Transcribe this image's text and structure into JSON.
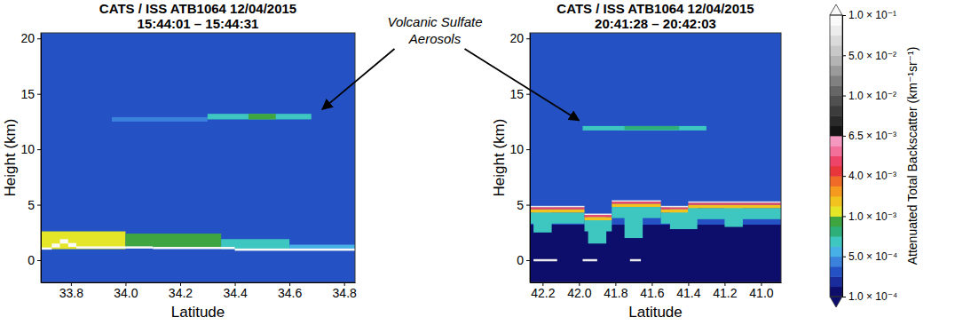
{
  "chart_data": [
    {
      "type": "heatmap",
      "title": "CATS / ISS ATB1064 12/04/2015",
      "subtitle": "15:44:01 – 15:44:31",
      "x_label": "Latitude",
      "y_label": "Height (km)",
      "xlim": [
        33.69,
        34.84
      ],
      "xticks": [
        33.8,
        {
          "value": 34,
          "label": "34.0"
        },
        34.2,
        34.4,
        34.6,
        34.8
      ],
      "ylim": [
        -2,
        20.5
      ],
      "yticks": [
        0,
        5,
        10,
        15,
        20
      ],
      "cells": [
        {
          "x": [
            33.69,
            34.84
          ],
          "y": [
            -2,
            20.5
          ],
          "value": 0.00025
        },
        {
          "x": [
            33.69,
            34.0
          ],
          "y": [
            1.0,
            2.6
          ],
          "value": 0.0011
        },
        {
          "x": [
            34.0,
            34.35
          ],
          "y": [
            1.1,
            2.4
          ],
          "value": 0.0009
        },
        {
          "x": [
            34.35,
            34.6
          ],
          "y": [
            1.0,
            1.9
          ],
          "value": 0.0006
        },
        {
          "x": [
            34.6,
            34.84
          ],
          "y": [
            0.9,
            1.4
          ],
          "value": 0.0005
        },
        {
          "x": [
            33.69,
            33.73
          ],
          "y": [
            0.95,
            1.15
          ],
          "value": 0.1
        },
        {
          "x": [
            33.73,
            33.76
          ],
          "y": [
            1.15,
            1.5
          ],
          "value": 0.1
        },
        {
          "x": [
            33.76,
            33.79
          ],
          "y": [
            1.5,
            1.9
          ],
          "value": 0.1
        },
        {
          "x": [
            33.79,
            33.82
          ],
          "y": [
            1.2,
            1.55
          ],
          "value": 0.1
        },
        {
          "x": [
            33.82,
            34.1
          ],
          "y": [
            1.05,
            1.25
          ],
          "value": 0.1
        },
        {
          "x": [
            34.1,
            34.4
          ],
          "y": [
            1.0,
            1.2
          ],
          "value": 0.1
        },
        {
          "x": [
            34.4,
            34.84
          ],
          "y": [
            0.85,
            1.05
          ],
          "value": 0.1
        },
        {
          "x": [
            33.95,
            34.3
          ],
          "y": [
            12.5,
            12.9
          ],
          "value": 0.00045
        },
        {
          "x": [
            34.3,
            34.68
          ],
          "y": [
            12.7,
            13.2
          ],
          "value": 0.0007
        },
        {
          "x": [
            34.45,
            34.55
          ],
          "y": [
            12.7,
            13.2
          ],
          "value": 0.0009
        }
      ],
      "annotation_point": {
        "x": 34.72,
        "y": 13.6
      }
    },
    {
      "type": "heatmap",
      "title": "CATS / ISS ATB1064 12/04/2015",
      "subtitle": "20:41:28 – 20:42:03",
      "x_label": "Latitude",
      "y_label": "Height (km)",
      "xlim": [
        42.27,
        40.89
      ],
      "xticks": [
        42.2,
        {
          "value": 42,
          "label": "42.0"
        },
        41.8,
        41.6,
        41.4,
        41.2,
        {
          "value": 41,
          "label": "41.0"
        }
      ],
      "ylim": [
        -2,
        20.5
      ],
      "yticks": [
        0,
        5,
        10,
        15,
        20
      ],
      "cells": [
        {
          "x": [
            42.27,
            40.89
          ],
          "y": [
            -2,
            20.5
          ],
          "value": 0.00025
        },
        {
          "x": [
            42.27,
            40.89
          ],
          "y": [
            -2,
            3.2
          ],
          "value": 0.00012
        },
        {
          "x": [
            42.25,
            42.15
          ],
          "y": [
            2.5,
            4.3
          ],
          "value": 0.0006
        },
        {
          "x": [
            41.95,
            41.85
          ],
          "y": [
            1.5,
            4.0
          ],
          "value": 0.0007
        },
        {
          "x": [
            41.75,
            41.65
          ],
          "y": [
            2.0,
            4.6
          ],
          "value": 0.0006
        },
        {
          "x": [
            41.5,
            41.35
          ],
          "y": [
            2.8,
            4.8
          ],
          "value": 0.0006
        },
        {
          "x": [
            41.2,
            41.1
          ],
          "y": [
            3.0,
            4.8
          ],
          "value": 0.0006
        },
        {
          "x": [
            42.27,
            41.97
          ],
          "y": [
            3.3,
            4.3
          ],
          "value": 0.0007
        },
        {
          "x": [
            42.27,
            41.97
          ],
          "y": [
            4.3,
            4.6
          ],
          "value": 0.0015
        },
        {
          "x": [
            42.27,
            41.97
          ],
          "y": [
            4.6,
            4.78
          ],
          "value": 0.005
        },
        {
          "x": [
            42.27,
            41.97
          ],
          "y": [
            4.78,
            4.9
          ],
          "value": 0.08
        },
        {
          "x": [
            41.97,
            41.82
          ],
          "y": [
            2.6,
            3.6
          ],
          "value": 0.0007
        },
        {
          "x": [
            41.97,
            41.82
          ],
          "y": [
            3.6,
            3.9
          ],
          "value": 0.0015
        },
        {
          "x": [
            41.97,
            41.82
          ],
          "y": [
            3.9,
            4.08
          ],
          "value": 0.005
        },
        {
          "x": [
            41.97,
            41.82
          ],
          "y": [
            4.08,
            4.2
          ],
          "value": 0.08
        },
        {
          "x": [
            41.82,
            41.55
          ],
          "y": [
            3.8,
            4.8
          ],
          "value": 0.0007
        },
        {
          "x": [
            41.82,
            41.55
          ],
          "y": [
            4.8,
            5.1
          ],
          "value": 0.0015
        },
        {
          "x": [
            41.82,
            41.55
          ],
          "y": [
            5.1,
            5.28
          ],
          "value": 0.005
        },
        {
          "x": [
            41.82,
            41.55
          ],
          "y": [
            5.28,
            5.4
          ],
          "value": 0.08
        },
        {
          "x": [
            41.55,
            41.4
          ],
          "y": [
            3.3,
            4.3
          ],
          "value": 0.0007
        },
        {
          "x": [
            41.55,
            41.4
          ],
          "y": [
            4.3,
            4.6
          ],
          "value": 0.0015
        },
        {
          "x": [
            41.55,
            41.4
          ],
          "y": [
            4.6,
            4.78
          ],
          "value": 0.005
        },
        {
          "x": [
            41.55,
            41.4
          ],
          "y": [
            4.78,
            4.9
          ],
          "value": 0.08
        },
        {
          "x": [
            41.4,
            40.89
          ],
          "y": [
            3.7,
            4.7
          ],
          "value": 0.0007
        },
        {
          "x": [
            41.4,
            40.89
          ],
          "y": [
            4.7,
            5.0
          ],
          "value": 0.0015
        },
        {
          "x": [
            41.4,
            40.89
          ],
          "y": [
            5.0,
            5.18
          ],
          "value": 0.005
        },
        {
          "x": [
            41.4,
            40.89
          ],
          "y": [
            5.18,
            5.3
          ],
          "value": 0.08
        },
        {
          "x": [
            42.25,
            42.12
          ],
          "y": [
            -0.1,
            0.1
          ],
          "value": 0.08
        },
        {
          "x": [
            41.98,
            41.9
          ],
          "y": [
            -0.1,
            0.1
          ],
          "value": 0.08
        },
        {
          "x": [
            41.72,
            41.66
          ],
          "y": [
            -0.1,
            0.1
          ],
          "value": 0.08
        },
        {
          "x": [
            41.98,
            41.3
          ],
          "y": [
            11.7,
            12.1
          ],
          "value": 0.00065
        },
        {
          "x": [
            41.75,
            41.45
          ],
          "y": [
            11.75,
            12.1
          ],
          "value": 0.0008
        }
      ],
      "annotation_point": {
        "x": 42.0,
        "y": 12.6
      }
    }
  ],
  "annotation": {
    "text": [
      "Volcanic Sulfate",
      "Aerosols"
    ]
  },
  "colorbar": {
    "title": "Attenuated Total Backscatter (km⁻¹sr⁻¹)",
    "range": [
      0.0001,
      0.1
    ],
    "ticks": [
      {
        "value": 0.0001,
        "label": "1.0 × 10⁻⁴"
      },
      {
        "value": 0.0005,
        "label": "5.0 × 10⁻⁴"
      },
      {
        "value": 0.001,
        "label": "1.0 × 10⁻³"
      },
      {
        "value": 0.004,
        "label": "4.0 × 10⁻³"
      },
      {
        "value": 0.0065,
        "label": "6.5 × 10⁻³"
      },
      {
        "value": 0.01,
        "label": "1.0 × 10⁻²"
      },
      {
        "value": 0.05,
        "label": "5.0 × 10⁻²"
      },
      {
        "value": 0.1,
        "label": "1.0 × 10⁻¹"
      }
    ],
    "colors": [
      "#0d0d6b",
      "#1a2b9c",
      "#2452c4",
      "#3a82dc",
      "#47b0e6",
      "#3ec7c0",
      "#2eae78",
      "#3fa541",
      "#e6e628",
      "#f2c21e",
      "#f59a1e",
      "#f06a28",
      "#e8363a",
      "#ee4468",
      "#f2709a",
      "#f598c0",
      "#141414",
      "#2a2a2a",
      "#3c3c3c",
      "#505050",
      "#666666",
      "#808080",
      "#9a9a9a",
      "#b4b4b4",
      "#c8c8c8",
      "#dadada",
      "#ececec",
      "#fafafa"
    ]
  }
}
